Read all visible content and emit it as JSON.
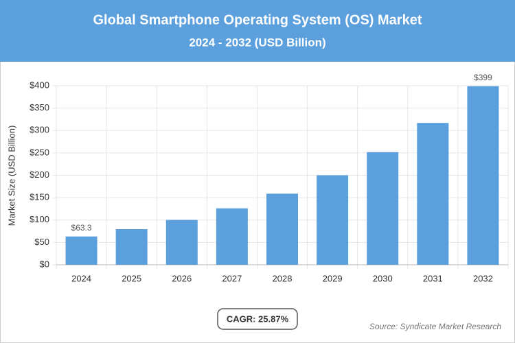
{
  "chart_data": {
    "type": "bar",
    "title": "Global Smartphone Operating System (OS) Market",
    "subtitle": "2024 - 2032 (USD Billion)",
    "y_label": "Market Size (USD Billion)",
    "categories": [
      "2024",
      "2025",
      "2026",
      "2027",
      "2028",
      "2029",
      "2030",
      "2031",
      "2032"
    ],
    "values": [
      63.3,
      79.7,
      100.3,
      126.2,
      158.9,
      200.0,
      251.7,
      316.9,
      399
    ],
    "value_labels": [
      "$63.3",
      null,
      null,
      null,
      null,
      null,
      null,
      null,
      "$399"
    ],
    "color": "#5b9fdc",
    "ylim": [
      0,
      400
    ],
    "yticks": [
      {
        "value": 0,
        "label": "$0"
      },
      {
        "value": 50,
        "label": "$50"
      },
      {
        "value": 100,
        "label": "$100"
      },
      {
        "value": 150,
        "label": "$150"
      },
      {
        "value": 200,
        "label": "$200"
      },
      {
        "value": 250,
        "label": "$250"
      },
      {
        "value": 300,
        "label": "$300"
      },
      {
        "value": 350,
        "label": "$350"
      },
      {
        "value": 400,
        "label": "$400"
      }
    ],
    "grid": true,
    "cagr": "CAGR: 25.87%",
    "source": "Source: Syndicate Market Research"
  }
}
